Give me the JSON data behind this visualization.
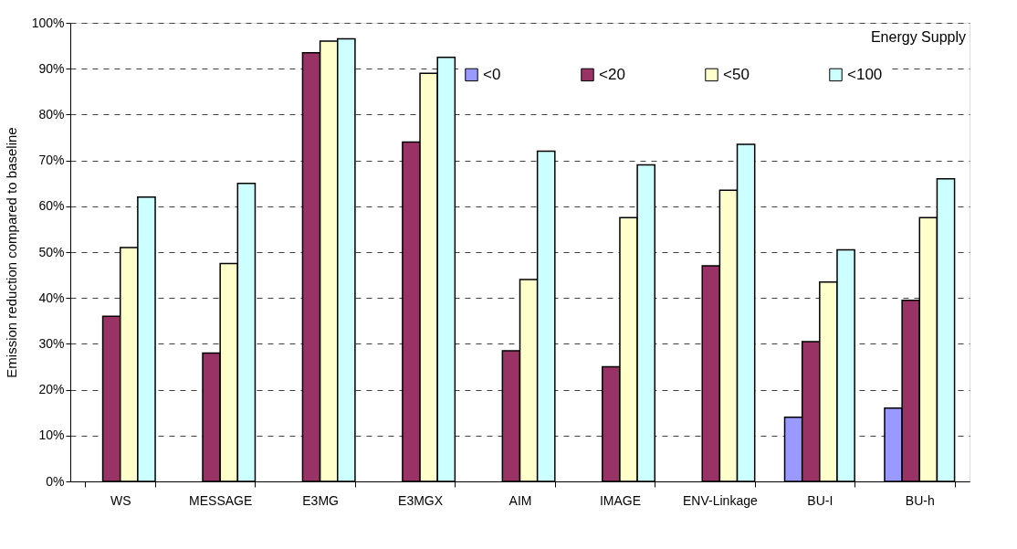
{
  "chart_data": {
    "type": "bar",
    "ylabel": "Emission reduction compared to baseline",
    "annotations": [
      "Energy Supply"
    ],
    "categories": [
      "WS",
      "MESSAGE",
      "E3MG",
      "E3MGX",
      "AIM",
      "IMAGE",
      "ENV-Linkage",
      "BU-I",
      "BU-h"
    ],
    "series": [
      {
        "name": "<0",
        "color": "#9999ff",
        "values": [
          null,
          null,
          null,
          null,
          null,
          null,
          null,
          14,
          16
        ]
      },
      {
        "name": "<20",
        "color": "#993366",
        "values": [
          36,
          28,
          93.5,
          74,
          28.5,
          25,
          47,
          30.5,
          39.5
        ]
      },
      {
        "name": "<50",
        "color": "#ffffcc",
        "values": [
          51,
          47.5,
          96,
          89,
          44,
          57.5,
          63.5,
          43.5,
          57.5
        ]
      },
      {
        "name": "<100",
        "color": "#ccffff",
        "values": [
          62,
          65,
          96.5,
          92.5,
          72,
          69,
          73.5,
          50.5,
          66
        ]
      }
    ],
    "ylim": [
      0,
      100
    ],
    "yticks": [
      {
        "value": 0,
        "label": "0%"
      },
      {
        "value": 10,
        "label": "10%"
      },
      {
        "value": 20,
        "label": "20%"
      },
      {
        "value": 30,
        "label": "30%"
      },
      {
        "value": 40,
        "label": "40%"
      },
      {
        "value": 50,
        "label": "50%"
      },
      {
        "value": 60,
        "label": "60%"
      },
      {
        "value": 70,
        "label": "70%"
      },
      {
        "value": 80,
        "label": "80%"
      },
      {
        "value": 90,
        "label": "90%"
      },
      {
        "value": 100,
        "label": "100%"
      }
    ],
    "grid": "y",
    "legend": "top right"
  }
}
